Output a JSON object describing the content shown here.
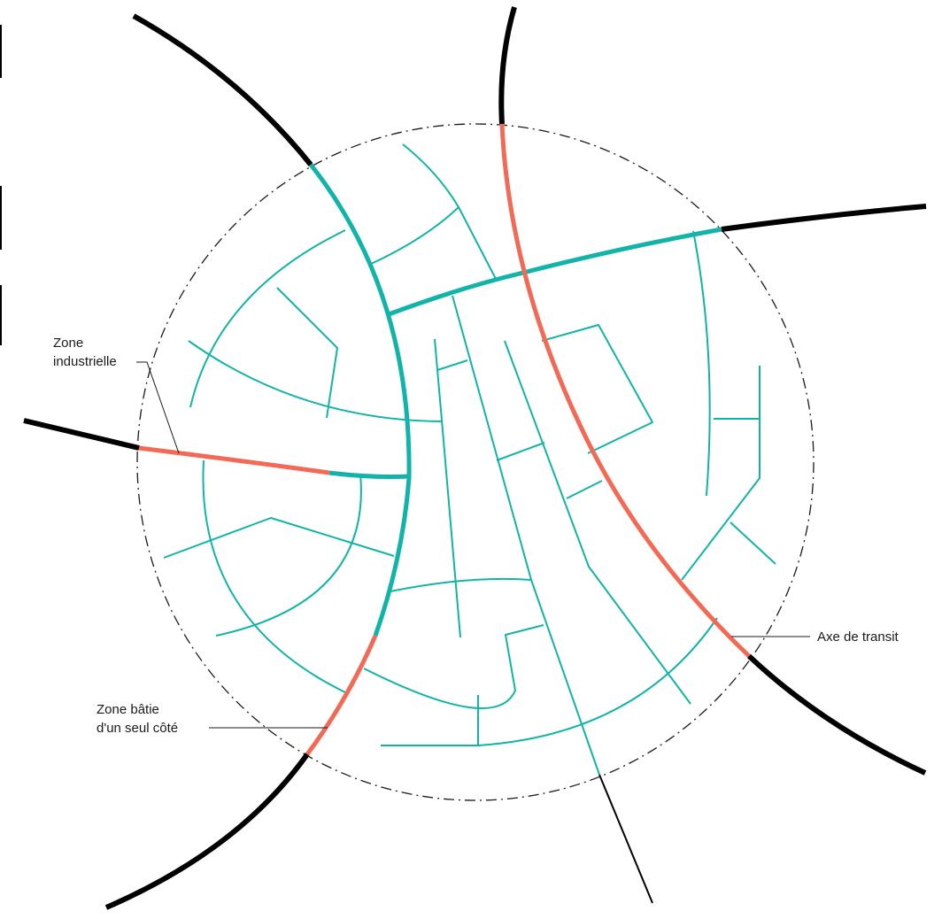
{
  "labels": {
    "industrial_line1": "Zone",
    "industrial_line2": "industrielle",
    "one_side_line1": "Zone bâtie",
    "one_side_line2": "d'un seul côté",
    "transit": "Axe de transit"
  },
  "colors": {
    "outer_road": "#000000",
    "inner_network": "#12b3a8",
    "one_side_built": "#f26a55",
    "boundary": "#1a1a1a",
    "label_text": "#1a1a1a"
  }
}
